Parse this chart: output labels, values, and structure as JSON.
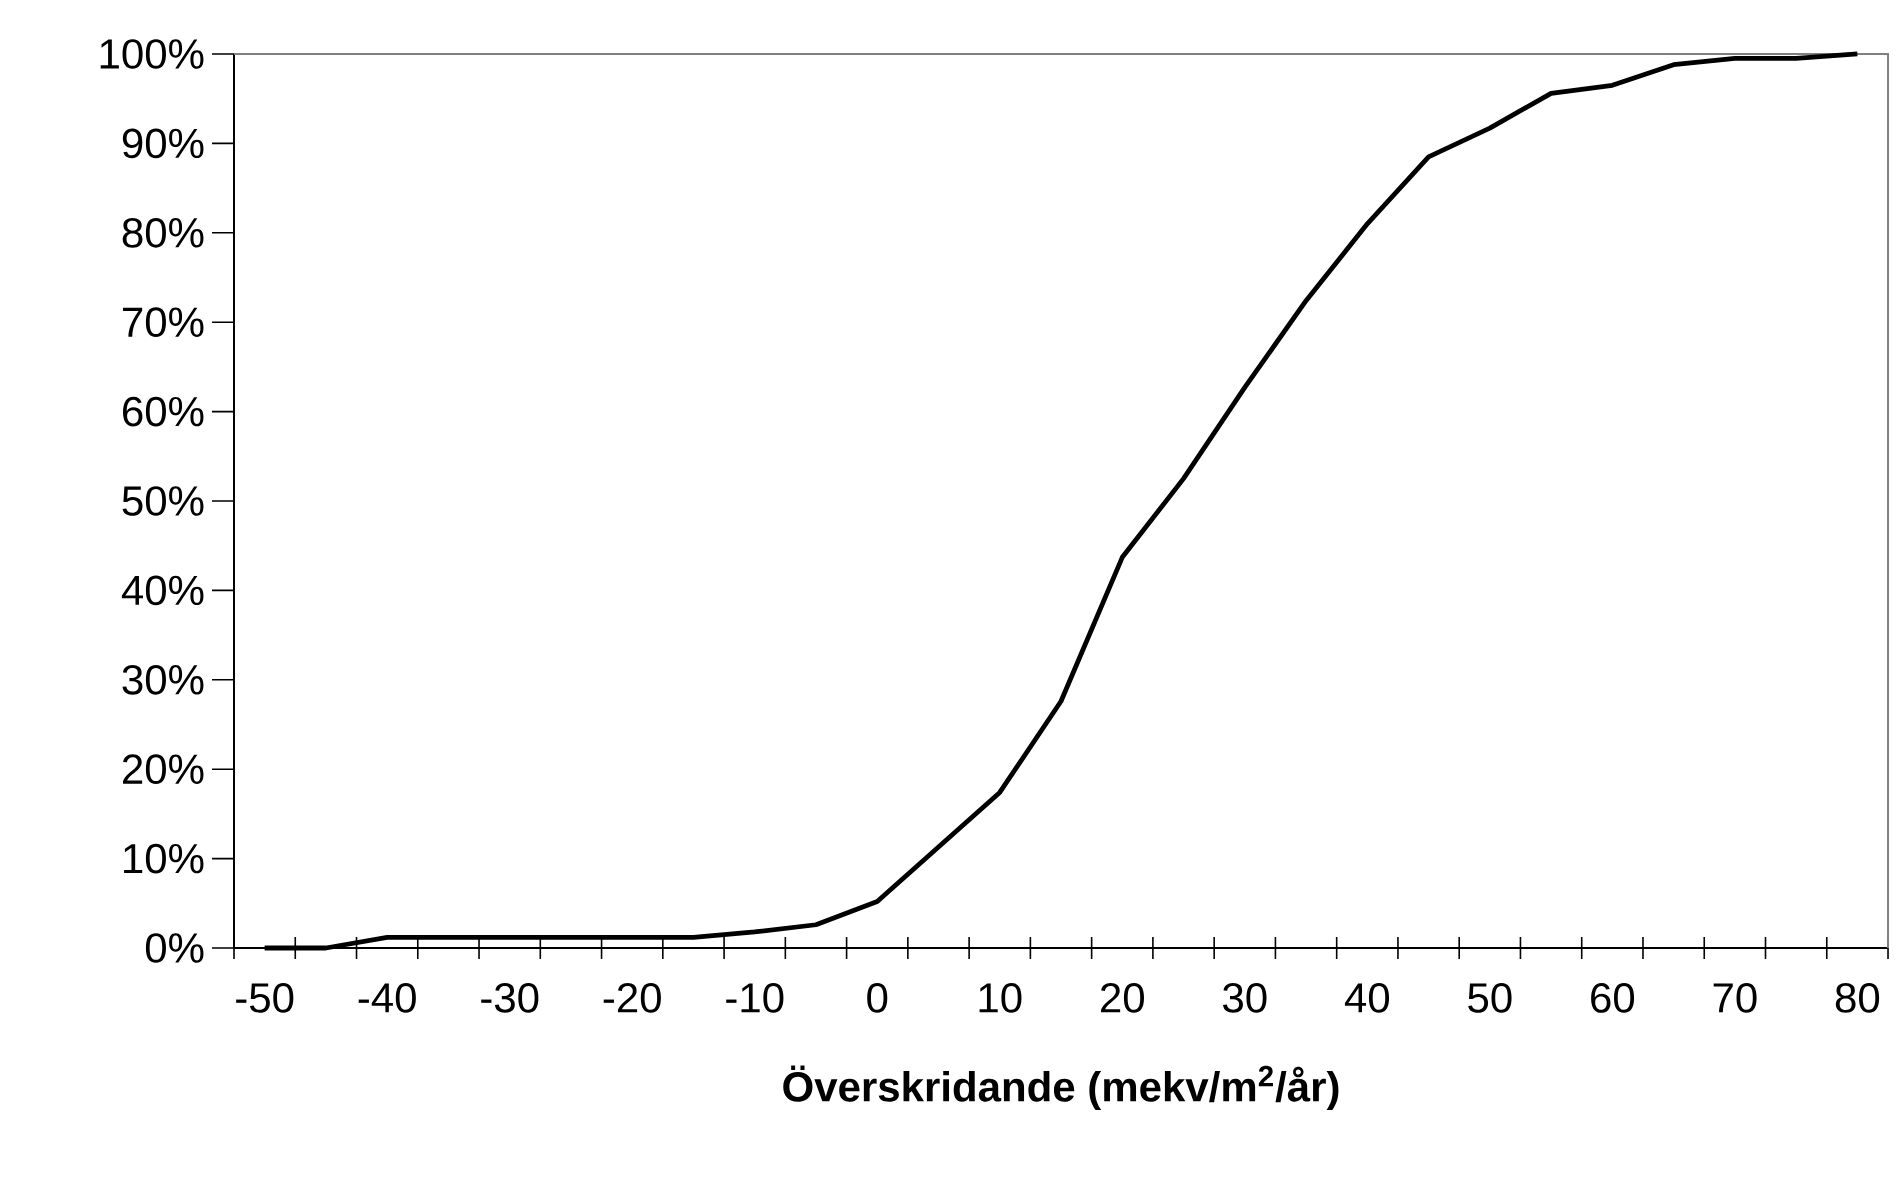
{
  "chart_data": {
    "type": "line",
    "xlabel": "Överskridande (mekv/m$^{2}$/år)",
    "categories": [
      "-50",
      null,
      "-40",
      null,
      "-30",
      null,
      "-20",
      null,
      "-10",
      null,
      "0",
      null,
      "10",
      null,
      "20",
      null,
      "30",
      null,
      "40",
      null,
      "50",
      null,
      "60",
      null,
      "70",
      null,
      "80"
    ],
    "values": [
      0,
      0,
      1.2,
      1.2,
      1.2,
      1.2,
      1.2,
      1.2,
      1.8,
      2.6,
      5.2,
      11.3,
      17.4,
      27.6,
      43.7,
      52.5,
      62.7,
      72.4,
      81.0,
      88.5,
      91.7,
      95.6,
      96.5,
      98.8,
      99.5,
      99.5,
      100
    ],
    "color": "#000000",
    "ylim": [
      0,
      100
    ],
    "yticks": [
      {
        "value": 0,
        "label": "0%"
      },
      {
        "value": 10,
        "label": "10%"
      },
      {
        "value": 20,
        "label": "20%"
      },
      {
        "value": 30,
        "label": "30%"
      },
      {
        "value": 40,
        "label": "40%"
      },
      {
        "value": 50,
        "label": "50%"
      },
      {
        "value": 60,
        "label": "60%"
      },
      {
        "value": 70,
        "label": "70%"
      },
      {
        "value": 80,
        "label": "80%"
      },
      {
        "value": 90,
        "label": "90%"
      },
      {
        "value": 100,
        "label": "100%"
      }
    ]
  }
}
